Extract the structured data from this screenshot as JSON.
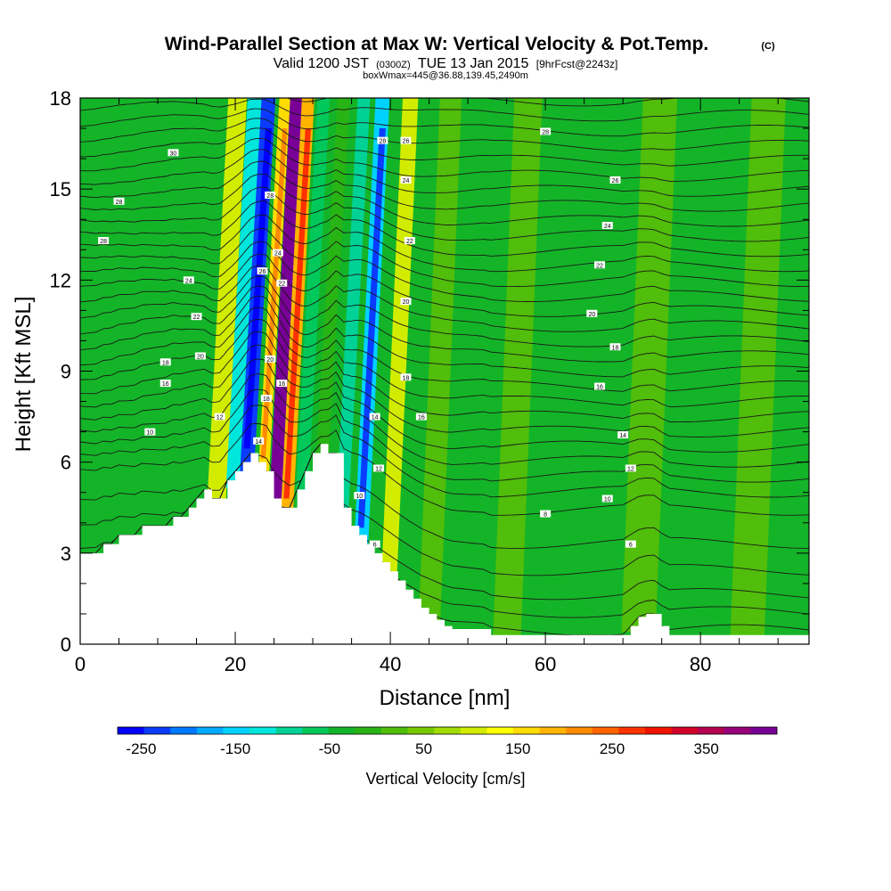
{
  "chart_data": {
    "type": "heatmap",
    "title": "Wind-Parallel Section at Max W: Vertical Velocity & Pot.Temp.",
    "title_mark": "(C)",
    "subtitle": {
      "valid": "Valid 1200 JST",
      "utc": "(0300Z)",
      "date": "TUE 13 Jan 2015",
      "fcst": "[9hrFcst@2243z]"
    },
    "box_info": "boxWmax=445@36.88,139.45,2490m",
    "xlabel": "Distance [nm]",
    "ylabel": "Height [Kft MSL]",
    "xlim": [
      0,
      94
    ],
    "ylim": [
      0,
      18
    ],
    "x_ticks": [
      0,
      20,
      40,
      60,
      80
    ],
    "y_ticks": [
      0,
      3,
      6,
      9,
      12,
      15,
      18
    ],
    "colorbar": {
      "label": "Vertical Velocity [cm/s]",
      "tick_labels": [
        "-250",
        "-150",
        "-50",
        "50",
        "150",
        "250",
        "350"
      ],
      "tick_values": [
        -250,
        -150,
        -50,
        50,
        150,
        250,
        350
      ],
      "range": [
        -275,
        425
      ],
      "colors": [
        "#0000ff",
        "#0a3cff",
        "#0078ff",
        "#00aaff",
        "#00d2ff",
        "#00e6dc",
        "#00d296",
        "#00c85a",
        "#14b428",
        "#28b414",
        "#50be0a",
        "#78c800",
        "#a0dc00",
        "#d2ec00",
        "#ffff00",
        "#ffdc00",
        "#ffb400",
        "#ff8c00",
        "#ff6400",
        "#ff3200",
        "#f01400",
        "#d20028",
        "#b40050",
        "#960078",
        "#780096"
      ]
    },
    "terrain_profile": [
      [
        0,
        3.0
      ],
      [
        1,
        3.0
      ],
      [
        2,
        3.0
      ],
      [
        3,
        3.3
      ],
      [
        4,
        3.3
      ],
      [
        5,
        3.6
      ],
      [
        6,
        3.6
      ],
      [
        7,
        3.6
      ],
      [
        8,
        3.9
      ],
      [
        9,
        3.9
      ],
      [
        10,
        3.9
      ],
      [
        11,
        3.9
      ],
      [
        12,
        4.2
      ],
      [
        13,
        4.2
      ],
      [
        14,
        4.5
      ],
      [
        15,
        4.8
      ],
      [
        16,
        5.1
      ],
      [
        17,
        4.8
      ],
      [
        18,
        4.8
      ],
      [
        19,
        5.4
      ],
      [
        20,
        5.7
      ],
      [
        21,
        6.0
      ],
      [
        22,
        6.3
      ],
      [
        23,
        6.0
      ],
      [
        24,
        5.7
      ],
      [
        25,
        4.8
      ],
      [
        26,
        4.5
      ],
      [
        27,
        4.5
      ],
      [
        28,
        5.1
      ],
      [
        29,
        5.7
      ],
      [
        30,
        6.3
      ],
      [
        31,
        6.6
      ],
      [
        32,
        6.3
      ],
      [
        33,
        6.3
      ],
      [
        34,
        4.5
      ],
      [
        35,
        3.9
      ],
      [
        36,
        3.6
      ],
      [
        37,
        3.3
      ],
      [
        38,
        3.0
      ],
      [
        39,
        2.7
      ],
      [
        40,
        2.4
      ],
      [
        41,
        2.1
      ],
      [
        42,
        1.8
      ],
      [
        43,
        1.5
      ],
      [
        44,
        1.2
      ],
      [
        45,
        1.0
      ],
      [
        46,
        0.8
      ],
      [
        47,
        0.6
      ],
      [
        48,
        0.5
      ],
      [
        49,
        0.5
      ],
      [
        50,
        0.5
      ],
      [
        51,
        0.5
      ],
      [
        52,
        0.5
      ],
      [
        53,
        0.3
      ],
      [
        54,
        0.3
      ],
      [
        55,
        0.3
      ],
      [
        56,
        0.3
      ],
      [
        57,
        0.3
      ],
      [
        58,
        0.3
      ],
      [
        59,
        0.3
      ],
      [
        60,
        0.3
      ],
      [
        61,
        0.3
      ],
      [
        62,
        0.3
      ],
      [
        63,
        0.3
      ],
      [
        64,
        0.3
      ],
      [
        65,
        0.3
      ],
      [
        66,
        0.3
      ],
      [
        67,
        0.3
      ],
      [
        68,
        0.3
      ],
      [
        69,
        0.3
      ],
      [
        70,
        0.3
      ],
      [
        71,
        0.6
      ],
      [
        72,
        0.9
      ],
      [
        73,
        1.0
      ],
      [
        74,
        1.0
      ],
      [
        75,
        0.6
      ],
      [
        76,
        0.3
      ],
      [
        77,
        0.3
      ],
      [
        78,
        0.3
      ],
      [
        79,
        0.3
      ],
      [
        80,
        0.3
      ],
      [
        81,
        0.3
      ],
      [
        82,
        0.3
      ],
      [
        83,
        0.3
      ],
      [
        84,
        0.3
      ],
      [
        85,
        0.3
      ],
      [
        86,
        0.3
      ],
      [
        87,
        0.3
      ],
      [
        88,
        0.3
      ],
      [
        89,
        0.3
      ],
      [
        90,
        0.3
      ],
      [
        91,
        0.3
      ],
      [
        92,
        0.3
      ],
      [
        93,
        0.3
      ],
      [
        94,
        0.3
      ]
    ],
    "vertical_velocity_bands": [
      {
        "x": 17.5,
        "w": 1.2,
        "value": 90
      },
      {
        "x": 19.8,
        "w": 1.0,
        "value": -110
      },
      {
        "x": 21.5,
        "w": 0.9,
        "value": -240
      },
      {
        "x": 23.6,
        "w": 0.7,
        "value": 160
      },
      {
        "x": 25.1,
        "w": 0.8,
        "value": 400
      },
      {
        "x": 26.6,
        "w": 0.8,
        "value": 200
      },
      {
        "x": 28.6,
        "w": 0.8,
        "value": -60
      },
      {
        "x": 31.2,
        "w": 0.8,
        "value": 0
      },
      {
        "x": 33.8,
        "w": 0.8,
        "value": -100
      },
      {
        "x": 36.2,
        "w": 0.9,
        "value": -160
      },
      {
        "x": 39.8,
        "w": 1.0,
        "value": 110
      },
      {
        "x": 45.0,
        "w": 1.4,
        "value": 20
      },
      {
        "x": 55.0,
        "w": 1.8,
        "value": 15
      },
      {
        "x": 72.0,
        "w": 2.2,
        "value": 25
      },
      {
        "x": 86.0,
        "w": 2.2,
        "value": 30
      }
    ],
    "isentrope_heights": [
      0.3,
      0.9,
      1.5,
      2.3,
      3.2,
      4.3,
      4.9,
      5.4,
      5.9,
      6.4,
      6.9,
      7.4,
      7.9,
      8.4,
      8.9,
      9.4,
      9.9,
      10.4,
      10.9,
      11.4,
      11.9,
      12.4,
      12.9,
      13.4,
      13.9,
      14.4,
      14.9,
      15.4,
      15.9,
      16.4,
      16.9,
      17.4,
      17.9
    ],
    "contour_labels": [
      {
        "text": "30",
        "x": 12,
        "y": 16.2
      },
      {
        "text": "28",
        "x": 5,
        "y": 14.6
      },
      {
        "text": "28",
        "x": 3,
        "y": 13.3
      },
      {
        "text": "24",
        "x": 14,
        "y": 12.0
      },
      {
        "text": "22",
        "x": 15,
        "y": 10.8
      },
      {
        "text": "20",
        "x": 15.5,
        "y": 9.5
      },
      {
        "text": "18",
        "x": 11,
        "y": 9.3
      },
      {
        "text": "16",
        "x": 11,
        "y": 8.6
      },
      {
        "text": "10",
        "x": 9,
        "y": 7.0
      },
      {
        "text": "12",
        "x": 18,
        "y": 7.5
      },
      {
        "text": "14",
        "x": 23,
        "y": 6.7
      },
      {
        "text": "18",
        "x": 24,
        "y": 8.1
      },
      {
        "text": "20",
        "x": 24.5,
        "y": 9.4
      },
      {
        "text": "16",
        "x": 26,
        "y": 8.6
      },
      {
        "text": "28",
        "x": 24.5,
        "y": 14.8
      },
      {
        "text": "24",
        "x": 25.5,
        "y": 12.9
      },
      {
        "text": "22",
        "x": 26,
        "y": 11.9
      },
      {
        "text": "26",
        "x": 23.5,
        "y": 12.3
      },
      {
        "text": "28",
        "x": 39,
        "y": 16.6
      },
      {
        "text": "26",
        "x": 42,
        "y": 16.6
      },
      {
        "text": "24",
        "x": 42,
        "y": 15.3
      },
      {
        "text": "22",
        "x": 42.5,
        "y": 13.3
      },
      {
        "text": "20",
        "x": 42,
        "y": 11.3
      },
      {
        "text": "18",
        "x": 42,
        "y": 8.8
      },
      {
        "text": "14",
        "x": 38,
        "y": 7.5
      },
      {
        "text": "16",
        "x": 44,
        "y": 7.5
      },
      {
        "text": "12",
        "x": 38.5,
        "y": 5.8
      },
      {
        "text": "10",
        "x": 36,
        "y": 4.9
      },
      {
        "text": "6",
        "x": 38,
        "y": 3.3
      },
      {
        "text": "28",
        "x": 60,
        "y": 16.9
      },
      {
        "text": "26",
        "x": 69,
        "y": 15.3
      },
      {
        "text": "24",
        "x": 68,
        "y": 13.8
      },
      {
        "text": "22",
        "x": 67,
        "y": 12.5
      },
      {
        "text": "20",
        "x": 66,
        "y": 10.9
      },
      {
        "text": "18",
        "x": 69,
        "y": 9.8
      },
      {
        "text": "16",
        "x": 67,
        "y": 8.5
      },
      {
        "text": "14",
        "x": 70,
        "y": 6.9
      },
      {
        "text": "12",
        "x": 71,
        "y": 5.8
      },
      {
        "text": "10",
        "x": 68,
        "y": 4.8
      },
      {
        "text": "8",
        "x": 60,
        "y": 4.3
      },
      {
        "text": "6",
        "x": 71,
        "y": 3.3
      }
    ],
    "grid": false
  }
}
